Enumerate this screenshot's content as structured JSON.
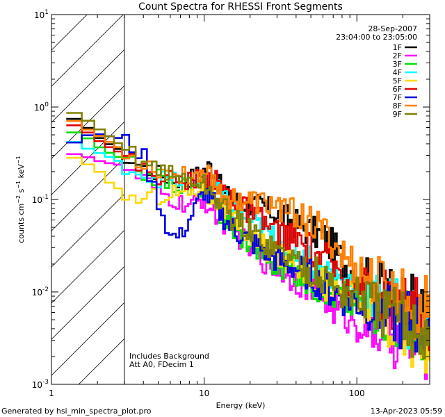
{
  "chart_data": {
    "type": "line",
    "title": "Count Spectra for RHESSI Front Segments",
    "xlabel": "Energy (keV)",
    "ylabel": "counts cm⁻² s⁻¹ keV⁻¹",
    "xscale": "log",
    "yscale": "log",
    "xlim": [
      1,
      300
    ],
    "ylim": [
      0.001,
      10
    ],
    "x_ticks": [
      {
        "value": 1,
        "label": "1"
      },
      {
        "value": 10,
        "label": "10"
      },
      {
        "value": 100,
        "label": "100"
      }
    ],
    "y_ticks": [
      {
        "value": 0.001,
        "base": "10",
        "exp": "-3"
      },
      {
        "value": 0.01,
        "base": "10",
        "exp": "-2"
      },
      {
        "value": 0.1,
        "base": "10",
        "exp": "-1"
      },
      {
        "value": 1,
        "base": "10",
        "exp": "0"
      },
      {
        "value": 10,
        "base": "10",
        "exp": "1"
      }
    ],
    "excluded_region": {
      "x_from": 1,
      "x_to": 3,
      "style": "hatched"
    },
    "legend_position": "top-right",
    "header_info": {
      "date": "28-Sep-2007",
      "time_range": "23:04:00 to 23:05:00"
    },
    "annotations": [
      "Includes Background",
      "Att A0, FDecim 1"
    ],
    "series": [
      {
        "name": "1F",
        "color": "#000000",
        "points": [
          [
            1.25,
            0.82
          ],
          [
            1.6,
            0.62
          ],
          [
            2.0,
            0.5
          ],
          [
            2.5,
            0.38
          ],
          [
            3,
            0.3
          ],
          [
            4,
            0.22
          ],
          [
            5,
            0.19
          ],
          [
            6,
            0.17
          ],
          [
            7,
            0.16
          ],
          [
            8,
            0.17
          ],
          [
            9,
            0.19
          ],
          [
            10,
            0.21
          ],
          [
            11,
            0.23
          ],
          [
            12,
            0.2
          ],
          [
            13,
            0.12
          ],
          [
            15,
            0.1
          ],
          [
            20,
            0.09
          ],
          [
            25,
            0.08
          ],
          [
            30,
            0.07
          ],
          [
            40,
            0.055
          ],
          [
            50,
            0.045
          ],
          [
            60,
            0.04
          ],
          [
            70,
            0.03
          ],
          [
            80,
            0.022
          ],
          [
            100,
            0.016
          ],
          [
            120,
            0.013
          ],
          [
            150,
            0.011
          ],
          [
            200,
            0.008
          ],
          [
            250,
            0.006
          ],
          [
            300,
            0.005
          ]
        ]
      },
      {
        "name": "2F",
        "color": "#ff00ff",
        "points": [
          [
            1.25,
            0.34
          ],
          [
            1.6,
            0.3
          ],
          [
            2.0,
            0.27
          ],
          [
            2.5,
            0.24
          ],
          [
            3,
            0.22
          ],
          [
            4,
            0.16
          ],
          [
            5,
            0.12
          ],
          [
            6,
            0.1
          ],
          [
            7,
            0.09
          ],
          [
            8,
            0.085
          ],
          [
            9,
            0.09
          ],
          [
            10,
            0.1
          ],
          [
            11,
            0.08
          ],
          [
            13,
            0.06
          ],
          [
            15,
            0.05
          ],
          [
            20,
            0.03
          ],
          [
            25,
            0.022
          ],
          [
            30,
            0.018
          ],
          [
            40,
            0.014
          ],
          [
            50,
            0.011
          ],
          [
            60,
            0.009
          ],
          [
            70,
            0.007
          ],
          [
            80,
            0.006
          ],
          [
            100,
            0.005
          ],
          [
            120,
            0.004
          ],
          [
            150,
            0.0035
          ],
          [
            200,
            0.003
          ],
          [
            250,
            0.0028
          ],
          [
            300,
            0.0025
          ]
        ]
      },
      {
        "name": "3F",
        "color": "#00e000",
        "points": [
          [
            1.25,
            0.6
          ],
          [
            1.6,
            0.48
          ],
          [
            2.0,
            0.38
          ],
          [
            2.5,
            0.3
          ],
          [
            3,
            0.26
          ],
          [
            4,
            0.2
          ],
          [
            5,
            0.17
          ],
          [
            6,
            0.15
          ],
          [
            7,
            0.14
          ],
          [
            8,
            0.13
          ],
          [
            9,
            0.14
          ],
          [
            10,
            0.13
          ],
          [
            11,
            0.1
          ],
          [
            13,
            0.07
          ],
          [
            15,
            0.05
          ],
          [
            20,
            0.035
          ],
          [
            25,
            0.025
          ],
          [
            30,
            0.02
          ],
          [
            40,
            0.016
          ],
          [
            50,
            0.013
          ],
          [
            60,
            0.011
          ],
          [
            70,
            0.01
          ],
          [
            80,
            0.009
          ],
          [
            100,
            0.008
          ],
          [
            120,
            0.007
          ],
          [
            150,
            0.006
          ],
          [
            200,
            0.005
          ],
          [
            250,
            0.0045
          ],
          [
            300,
            0.004
          ]
        ]
      },
      {
        "name": "4F",
        "color": "#00ffff",
        "points": [
          [
            1.25,
            0.45
          ],
          [
            1.6,
            0.38
          ],
          [
            2.0,
            0.32
          ],
          [
            2.5,
            0.27
          ],
          [
            3,
            0.24
          ],
          [
            4,
            0.19
          ],
          [
            5,
            0.17
          ],
          [
            6,
            0.16
          ],
          [
            7,
            0.155
          ],
          [
            8,
            0.15
          ],
          [
            9,
            0.16
          ],
          [
            10,
            0.17
          ],
          [
            11,
            0.15
          ],
          [
            13,
            0.11
          ],
          [
            15,
            0.08
          ],
          [
            20,
            0.06
          ],
          [
            25,
            0.045
          ],
          [
            30,
            0.035
          ],
          [
            40,
            0.028
          ],
          [
            50,
            0.022
          ],
          [
            60,
            0.018
          ],
          [
            70,
            0.015
          ],
          [
            80,
            0.013
          ],
          [
            100,
            0.011
          ],
          [
            120,
            0.009
          ],
          [
            150,
            0.008
          ],
          [
            200,
            0.006
          ],
          [
            250,
            0.005
          ],
          [
            300,
            0.0045
          ]
        ]
      },
      {
        "name": "5F",
        "color": "#ffd800",
        "points": [
          [
            1.25,
            0.3
          ],
          [
            1.6,
            0.25
          ],
          [
            2.0,
            0.2
          ],
          [
            2.5,
            0.15
          ],
          [
            3,
            0.11
          ],
          [
            4,
            0.1
          ],
          [
            5,
            0.11
          ],
          [
            6,
            0.12
          ],
          [
            7,
            0.12
          ],
          [
            8,
            0.12
          ],
          [
            9,
            0.13
          ],
          [
            10,
            0.13
          ],
          [
            11,
            0.11
          ],
          [
            13,
            0.08
          ],
          [
            15,
            0.06
          ],
          [
            20,
            0.04
          ],
          [
            25,
            0.03
          ],
          [
            30,
            0.025
          ],
          [
            40,
            0.02
          ],
          [
            50,
            0.016
          ],
          [
            60,
            0.013
          ],
          [
            70,
            0.011
          ],
          [
            80,
            0.009
          ],
          [
            100,
            0.008
          ],
          [
            120,
            0.007
          ],
          [
            150,
            0.005
          ],
          [
            200,
            0.004
          ],
          [
            250,
            0.0035
          ],
          [
            300,
            0.003
          ]
        ]
      },
      {
        "name": "6F",
        "color": "#e00000",
        "points": [
          [
            1.25,
            0.75
          ],
          [
            1.6,
            0.58
          ],
          [
            2.0,
            0.46
          ],
          [
            2.5,
            0.36
          ],
          [
            3,
            0.29
          ],
          [
            4,
            0.22
          ],
          [
            5,
            0.18
          ],
          [
            6,
            0.17
          ],
          [
            7,
            0.16
          ],
          [
            8,
            0.16
          ],
          [
            9,
            0.17
          ],
          [
            10,
            0.18
          ],
          [
            11,
            0.17
          ],
          [
            13,
            0.14
          ],
          [
            15,
            0.11
          ],
          [
            20,
            0.07
          ],
          [
            25,
            0.055
          ],
          [
            30,
            0.045
          ],
          [
            40,
            0.036
          ],
          [
            50,
            0.028
          ],
          [
            60,
            0.023
          ],
          [
            70,
            0.019
          ],
          [
            80,
            0.016
          ],
          [
            100,
            0.013
          ],
          [
            120,
            0.011
          ],
          [
            150,
            0.009
          ],
          [
            200,
            0.007
          ],
          [
            250,
            0.006
          ],
          [
            300,
            0.005
          ]
        ]
      },
      {
        "name": "7F",
        "color": "#0000e0",
        "points": [
          [
            1.25,
            0.4
          ],
          [
            1.6,
            0.45
          ],
          [
            2.0,
            0.52
          ],
          [
            2.5,
            0.48
          ],
          [
            3,
            0.43
          ],
          [
            4,
            0.3
          ],
          [
            5,
            0.1
          ],
          [
            6,
            0.04
          ],
          [
            7,
            0.04
          ],
          [
            8,
            0.06
          ],
          [
            9,
            0.09
          ],
          [
            10,
            0.12
          ],
          [
            11,
            0.1
          ],
          [
            13,
            0.07
          ],
          [
            15,
            0.05
          ],
          [
            20,
            0.035
          ],
          [
            25,
            0.028
          ],
          [
            30,
            0.022
          ],
          [
            40,
            0.018
          ],
          [
            50,
            0.015
          ],
          [
            60,
            0.012
          ],
          [
            70,
            0.01
          ],
          [
            80,
            0.009
          ],
          [
            100,
            0.008
          ],
          [
            120,
            0.007
          ],
          [
            150,
            0.006
          ],
          [
            200,
            0.005
          ],
          [
            250,
            0.0045
          ],
          [
            300,
            0.004
          ]
        ]
      },
      {
        "name": "8F",
        "color": "#ff8000",
        "points": [
          [
            1.25,
            0.8
          ],
          [
            1.6,
            0.62
          ],
          [
            2.0,
            0.5
          ],
          [
            2.5,
            0.4
          ],
          [
            3,
            0.33
          ],
          [
            4,
            0.25
          ],
          [
            5,
            0.21
          ],
          [
            6,
            0.19
          ],
          [
            7,
            0.18
          ],
          [
            8,
            0.18
          ],
          [
            9,
            0.19
          ],
          [
            10,
            0.2
          ],
          [
            11,
            0.18
          ],
          [
            13,
            0.12
          ],
          [
            15,
            0.1
          ],
          [
            20,
            0.095
          ],
          [
            25,
            0.09
          ],
          [
            30,
            0.085
          ],
          [
            40,
            0.07
          ],
          [
            50,
            0.055
          ],
          [
            60,
            0.045
          ],
          [
            70,
            0.035
          ],
          [
            80,
            0.025
          ],
          [
            100,
            0.018
          ],
          [
            120,
            0.014
          ],
          [
            150,
            0.012
          ],
          [
            200,
            0.009
          ],
          [
            250,
            0.007
          ],
          [
            300,
            0.006
          ]
        ]
      },
      {
        "name": "9F",
        "color": "#808000",
        "points": [
          [
            1.25,
            0.95
          ],
          [
            1.6,
            0.75
          ],
          [
            2.0,
            0.58
          ],
          [
            2.5,
            0.45
          ],
          [
            3,
            0.36
          ],
          [
            4,
            0.27
          ],
          [
            5,
            0.22
          ],
          [
            6,
            0.19
          ],
          [
            7,
            0.17
          ],
          [
            8,
            0.16
          ],
          [
            9,
            0.15
          ],
          [
            10,
            0.15
          ],
          [
            11,
            0.12
          ],
          [
            13,
            0.09
          ],
          [
            15,
            0.065
          ],
          [
            20,
            0.045
          ],
          [
            25,
            0.035
          ],
          [
            30,
            0.028
          ],
          [
            40,
            0.022
          ],
          [
            50,
            0.017
          ],
          [
            60,
            0.014
          ],
          [
            70,
            0.012
          ],
          [
            80,
            0.01
          ],
          [
            100,
            0.009
          ],
          [
            120,
            0.008
          ],
          [
            150,
            0.006
          ],
          [
            200,
            0.005
          ],
          [
            250,
            0.0042
          ],
          [
            300,
            0.0035
          ]
        ]
      }
    ]
  },
  "footer": {
    "generated_by": "Generated by hsi_min_spectra_plot.pro",
    "timestamp": "13-Apr-2023 05:59"
  }
}
